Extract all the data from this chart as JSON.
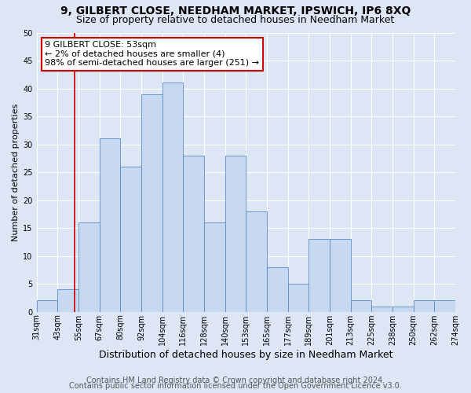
{
  "title1": "9, GILBERT CLOSE, NEEDHAM MARKET, IPSWICH, IP6 8XQ",
  "title2": "Size of property relative to detached houses in Needham Market",
  "xlabel": "Distribution of detached houses by size in Needham Market",
  "ylabel": "Number of detached properties",
  "bar_values": [
    2,
    4,
    16,
    31,
    26,
    39,
    41,
    28,
    16,
    28,
    18,
    8,
    5,
    13,
    13,
    2,
    1,
    1,
    2,
    2
  ],
  "bar_labels": [
    "31sqm",
    "43sqm",
    "55sqm",
    "67sqm",
    "80sqm",
    "92sqm",
    "104sqm",
    "116sqm",
    "128sqm",
    "140sqm",
    "153sqm",
    "165sqm",
    "177sqm",
    "189sqm",
    "201sqm",
    "213sqm",
    "225sqm",
    "238sqm",
    "250sqm",
    "262sqm",
    "274sqm"
  ],
  "bar_color": "#c6d9f1",
  "bar_edge_color": "#5b8ac5",
  "bar_width": 1.0,
  "redline_x": 1.83,
  "annotation_title": "9 GILBERT CLOSE: 53sqm",
  "annotation_line1": "← 2% of detached houses are smaller (4)",
  "annotation_line2": "98% of semi-detached houses are larger (251) →",
  "annotation_box_color": "#ffffff",
  "annotation_box_edge_color": "#cc0000",
  "ylim": [
    0,
    50
  ],
  "yticks": [
    0,
    5,
    10,
    15,
    20,
    25,
    30,
    35,
    40,
    45,
    50
  ],
  "footer1": "Contains HM Land Registry data © Crown copyright and database right 2024.",
  "footer2": "Contains public sector information licensed under the Open Government Licence v3.0.",
  "bg_color": "#dce6f5",
  "plot_bg_color": "#dce6f5",
  "grid_color": "#ffffff",
  "title1_fontsize": 10,
  "title2_fontsize": 9,
  "xlabel_fontsize": 9,
  "ylabel_fontsize": 8,
  "tick_label_fontsize": 7,
  "annotation_fontsize": 8,
  "footer_fontsize": 7
}
